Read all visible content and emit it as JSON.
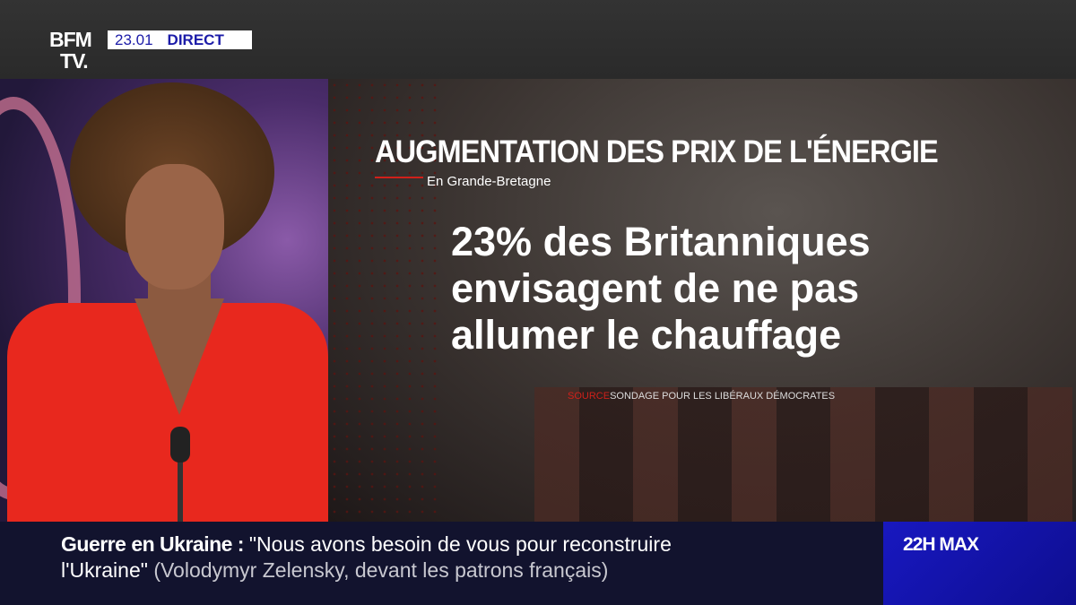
{
  "header": {
    "logo_line1": "BFM",
    "logo_line2": "TV.",
    "time": "23.01",
    "live_label": "DIRECT"
  },
  "graphic": {
    "title": "AUGMENTATION DES PRIX DE L'ÉNERGIE",
    "subtitle": "En Grande-Bretagne",
    "headline_lines": [
      "23% des Britanniques",
      "envisagent de ne pas",
      "allumer le chauffage"
    ],
    "source_label": "SOURCE",
    "source_text": "SONDAGE POUR LES LIBÉRAUX DÉMOCRATES"
  },
  "ticker": {
    "topic": "Guerre en Ukraine",
    "separator": " : ",
    "quote_line1": "\"Nous avons besoin de vous pour reconstruire",
    "quote_line2": "l'Ukraine\"",
    "attribution": "(Volodymyr Zelensky, devant les patrons français)",
    "program": "22H MAX"
  },
  "colors": {
    "brand_blue": "#1818c0",
    "accent_red": "#d0201a",
    "ticker_bg": "#12132e"
  }
}
